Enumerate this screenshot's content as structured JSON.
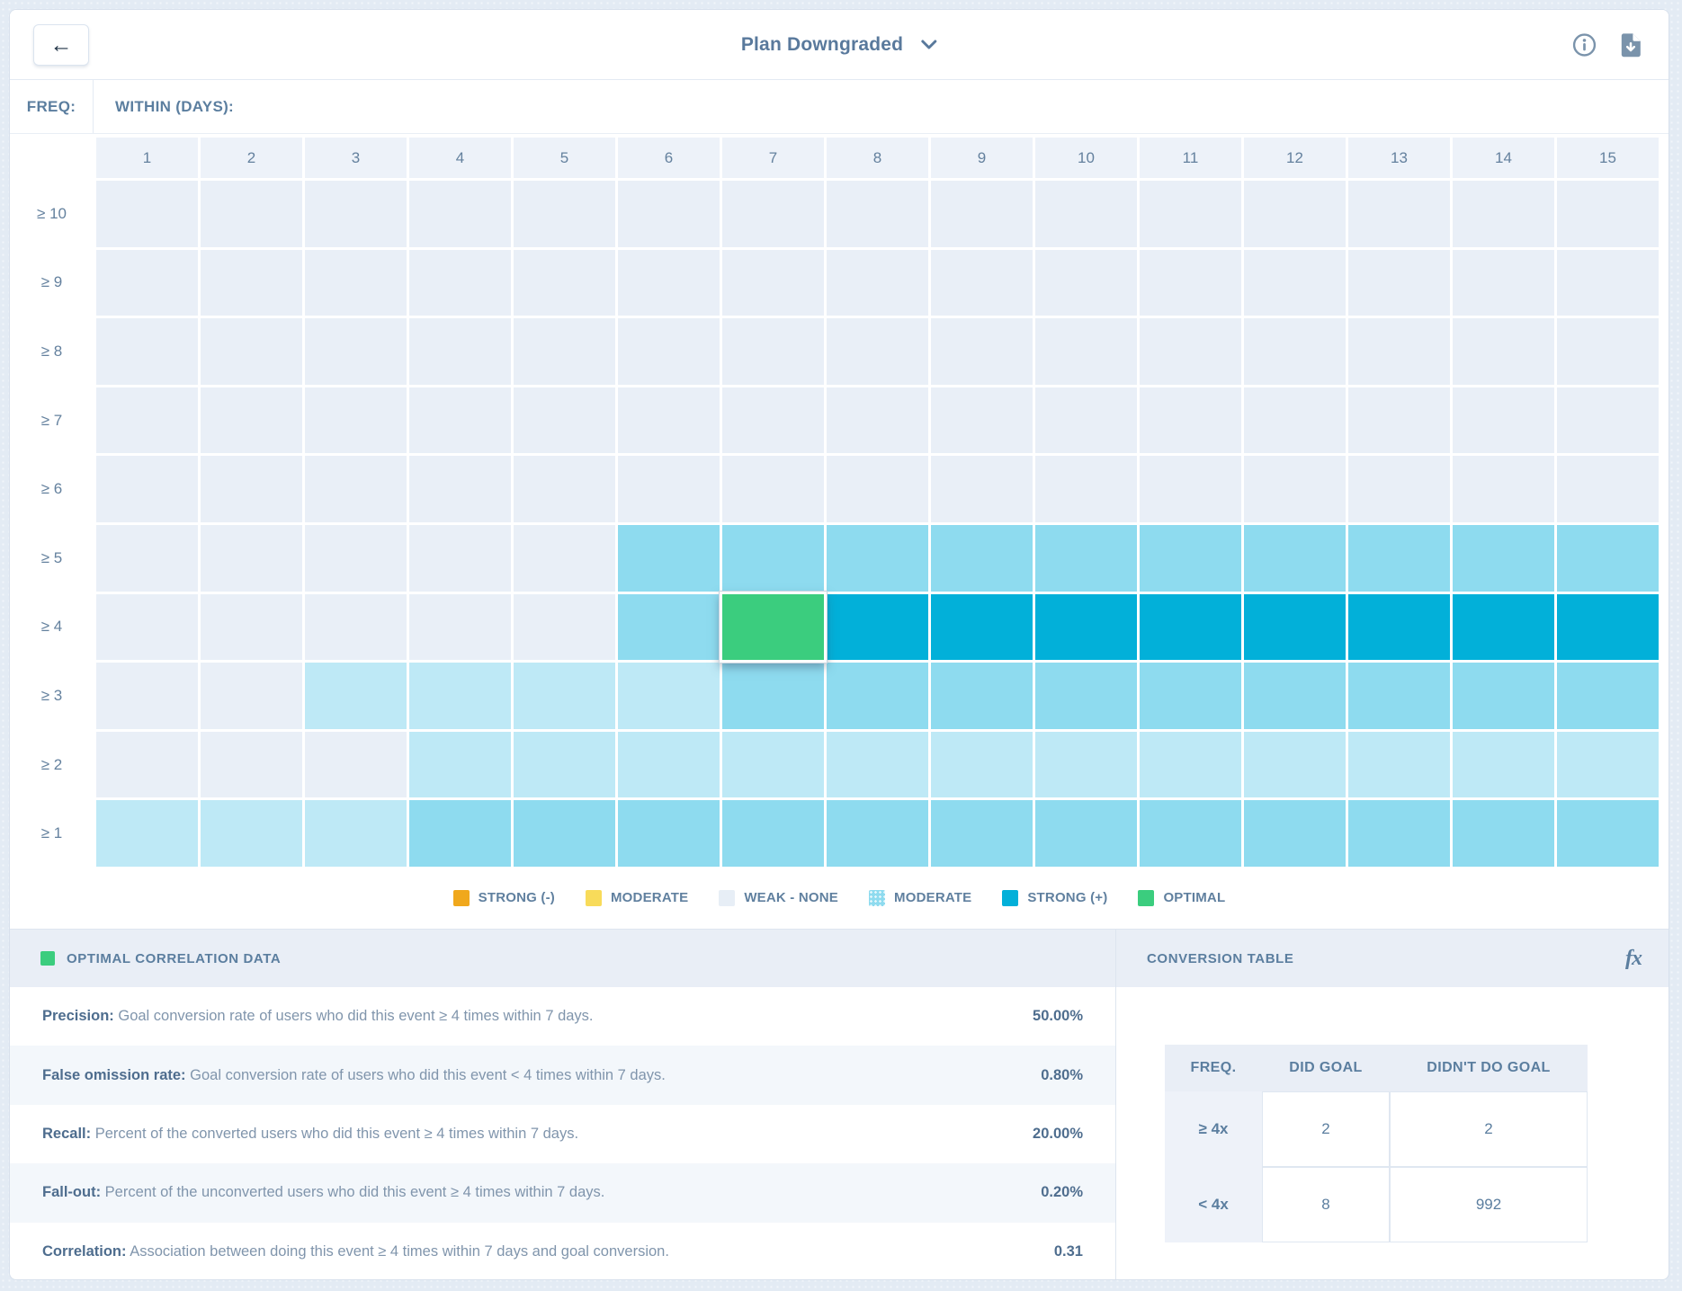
{
  "header": {
    "title": "Plan Downgraded",
    "icons": {
      "back": "arrow-left",
      "title_caret": "chevron-down",
      "info": "info-circle",
      "download": "file-download"
    }
  },
  "chart_data": {
    "type": "heatmap",
    "y_title": "FREQ:",
    "x_title": "WITHIN (DAYS):",
    "columns": [
      "1",
      "2",
      "3",
      "4",
      "5",
      "6",
      "7",
      "8",
      "9",
      "10",
      "11",
      "12",
      "13",
      "14",
      "15"
    ],
    "rows": [
      {
        "label": "≥ 10",
        "cells": "wwwwwwwwwwwwwww"
      },
      {
        "label": "≥ 9",
        "cells": "wwwwwwwwwwwwwww"
      },
      {
        "label": "≥ 8",
        "cells": "wwwwwwwwwwwwwww"
      },
      {
        "label": "≥ 7",
        "cells": "wwwwwwwwwwwwwww"
      },
      {
        "label": "≥ 6",
        "cells": "wwwwwwwwwwwwwww"
      },
      {
        "label": "≥ 5",
        "cells": "wwwwwmmmmmmmmmm"
      },
      {
        "label": "≥ 4",
        "cells": "wwwwwmossssssss"
      },
      {
        "label": "≥ 3",
        "cells": "wwllllmmmmmmmmm"
      },
      {
        "label": "≥ 2",
        "cells": "wwwllllllllllll"
      },
      {
        "label": "≥ 1",
        "cells": "lllmmmmmmmmmmmm"
      }
    ],
    "palette": {
      "w": "#E9EFF7",
      "l": "#BEE9F6",
      "m": "#8EDBEF",
      "s": "#02B0D9",
      "o": "#3BCD7E"
    },
    "levels_legend": {
      "w": "WEAK - NONE",
      "l": "MODERATE (light)",
      "m": "MODERATE",
      "s": "STRONG (+)",
      "o": "OPTIMAL"
    },
    "selected_cell": {
      "row": "≥ 4",
      "column": "7",
      "level": "o"
    }
  },
  "legend": [
    {
      "label": "STRONG (-)",
      "color": "#F0A81C",
      "textured": false
    },
    {
      "label": "MODERATE",
      "color": "#F8DB5A",
      "textured": false
    },
    {
      "label": "WEAK - NONE",
      "color": "#E7EEF6",
      "textured": false
    },
    {
      "label": "MODERATE",
      "color": "#8EDBEF",
      "textured": true
    },
    {
      "label": "STRONG (+)",
      "color": "#02B0D9",
      "textured": false
    },
    {
      "label": "OPTIMAL",
      "color": "#3BCD7E",
      "textured": false
    }
  ],
  "optimal_panel": {
    "title": "OPTIMAL CORRELATION DATA",
    "stats": [
      {
        "label": "Precision:",
        "desc": "Goal conversion rate of users who did this event ≥ 4 times within 7 days.",
        "value": "50.00%"
      },
      {
        "label": "False omission rate:",
        "desc": "Goal conversion rate of users who did this event < 4 times within 7 days.",
        "value": "0.80%"
      },
      {
        "label": "Recall:",
        "desc": "Percent of the converted users who did this event ≥ 4 times within 7 days.",
        "value": "20.00%"
      },
      {
        "label": "Fall-out:",
        "desc": "Percent of the unconverted users who did this event ≥ 4 times within 7 days.",
        "value": "0.20%"
      },
      {
        "label": "Correlation:",
        "desc": "Association between doing this event ≥ 4 times within 7 days and goal conversion.",
        "value": "0.31"
      }
    ]
  },
  "conversion_panel": {
    "title": "CONVERSION TABLE",
    "fx_label": "fx",
    "table": {
      "headers": [
        "FREQ.",
        "DID GOAL",
        "DIDN'T DO GOAL"
      ],
      "rows": [
        {
          "freq": "≥ 4x",
          "did": "2",
          "didnt": "2"
        },
        {
          "freq": "< 4x",
          "did": "8",
          "didnt": "992"
        }
      ]
    }
  }
}
